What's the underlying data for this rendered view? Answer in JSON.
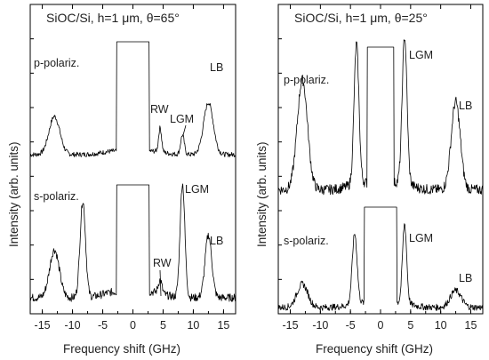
{
  "chart_data": [
    {
      "type": "line",
      "title": "SiOC/Si,  h=1 μm,  θ=65°",
      "xlabel": "Frequency shift (GHz)",
      "ylabel": "Intensity (arb. units)",
      "xlim": [
        -17,
        17
      ],
      "xticks": [
        "-15",
        "-10",
        "-5",
        "0",
        "5",
        "10",
        "15"
      ],
      "grid": false,
      "series": [
        {
          "name": "p-polariz.",
          "peaks": [
            {
              "x": -13,
              "height": 0.55,
              "width": 0.9
            },
            {
              "x": 4.5,
              "height": 0.35,
              "width": 0.25
            },
            {
              "x": 8.2,
              "height": 0.28,
              "width": 0.3
            },
            {
              "x": 12.5,
              "height": 0.75,
              "width": 0.8
            }
          ],
          "plateau": [
            -2.5,
            2.5
          ]
        },
        {
          "name": "s-polariz.",
          "peaks": [
            {
              "x": -13,
              "height": 0.42,
              "width": 0.8
            },
            {
              "x": -8.3,
              "height": 0.85,
              "width": 0.45
            },
            {
              "x": 4.5,
              "height": 0.12,
              "width": 0.3
            },
            {
              "x": 8.2,
              "height": 1.0,
              "width": 0.4
            },
            {
              "x": 12.5,
              "height": 0.55,
              "width": 0.55
            }
          ],
          "plateau": [
            -2.5,
            2.5
          ]
        }
      ],
      "annotations": [
        "RW",
        "LGM",
        "LB",
        "LGM",
        "RW",
        "LB"
      ]
    },
    {
      "type": "line",
      "title": "SiOC/Si,  h=1 μm,  θ=25°",
      "xlabel": "Frequency shift (GHz)",
      "ylabel": "Intensity (arb. units)",
      "xlim": [
        -17,
        17
      ],
      "xticks": [
        "-15",
        "-10",
        "-5",
        "0",
        "5",
        "10",
        "15"
      ],
      "grid": false,
      "series": [
        {
          "name": "p-polariz.",
          "peaks": [
            {
              "x": -13,
              "height": 0.75,
              "width": 0.85
            },
            {
              "x": -4,
              "height": 0.95,
              "width": 0.4
            },
            {
              "x": 4,
              "height": 1.0,
              "width": 0.4
            },
            {
              "x": 12.5,
              "height": 0.6,
              "width": 0.75
            }
          ],
          "plateau": [
            -2,
            2
          ]
        },
        {
          "name": "s-polariz.",
          "peaks": [
            {
              "x": -13,
              "height": 0.25,
              "width": 0.9
            },
            {
              "x": -4.3,
              "height": 0.75,
              "width": 0.4
            },
            {
              "x": 4,
              "height": 0.85,
              "width": 0.35
            },
            {
              "x": 12.5,
              "height": 0.18,
              "width": 0.9
            }
          ],
          "plateau": [
            -2.5,
            2.5
          ]
        }
      ],
      "annotations": [
        "LGM",
        "LB",
        "LGM",
        "LB"
      ]
    }
  ]
}
